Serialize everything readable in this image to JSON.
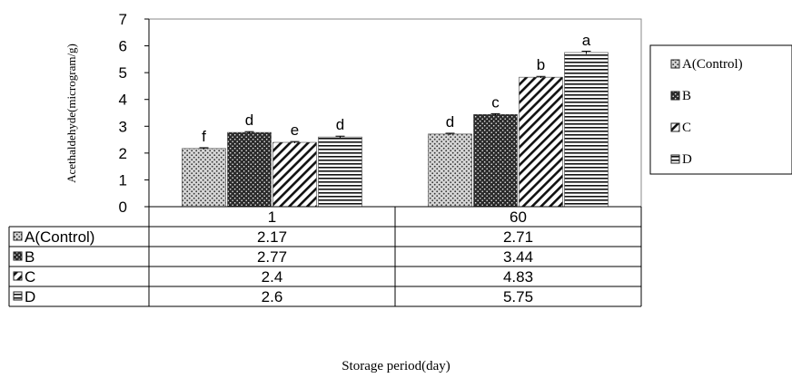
{
  "chart_data": {
    "type": "bar",
    "ylabel": "Acethaldehyde(microgram/g)",
    "xlabel": "Storage period(day)",
    "categories": [
      "1",
      "60"
    ],
    "ylim": [
      0,
      7
    ],
    "yticks": [
      0,
      1,
      2,
      3,
      4,
      5,
      6,
      7
    ],
    "grid": false,
    "legend_position": "right",
    "series": [
      {
        "name": "A(Control)",
        "values": [
          2.17,
          2.71
        ],
        "letters": [
          "f",
          "d"
        ],
        "errors": [
          0.03,
          0.03
        ],
        "pattern": "dots",
        "value_labels": [
          "2.17",
          "2.71"
        ]
      },
      {
        "name": "B",
        "values": [
          2.77,
          3.44
        ],
        "letters": [
          "d",
          "c"
        ],
        "errors": [
          0.03,
          0.03
        ],
        "pattern": "dense-dots",
        "value_labels": [
          "2.77",
          "3.44"
        ]
      },
      {
        "name": "C",
        "values": [
          2.4,
          4.83
        ],
        "letters": [
          "e",
          "b"
        ],
        "errors": [
          0.03,
          0.03
        ],
        "pattern": "diagonal",
        "value_labels": [
          "2.4",
          "4.83"
        ]
      },
      {
        "name": "D",
        "values": [
          2.6,
          5.75
        ],
        "letters": [
          "d",
          "a"
        ],
        "errors": [
          0.03,
          0.05
        ],
        "pattern": "horizontal",
        "value_labels": [
          "2.6",
          "5.75"
        ]
      }
    ]
  }
}
